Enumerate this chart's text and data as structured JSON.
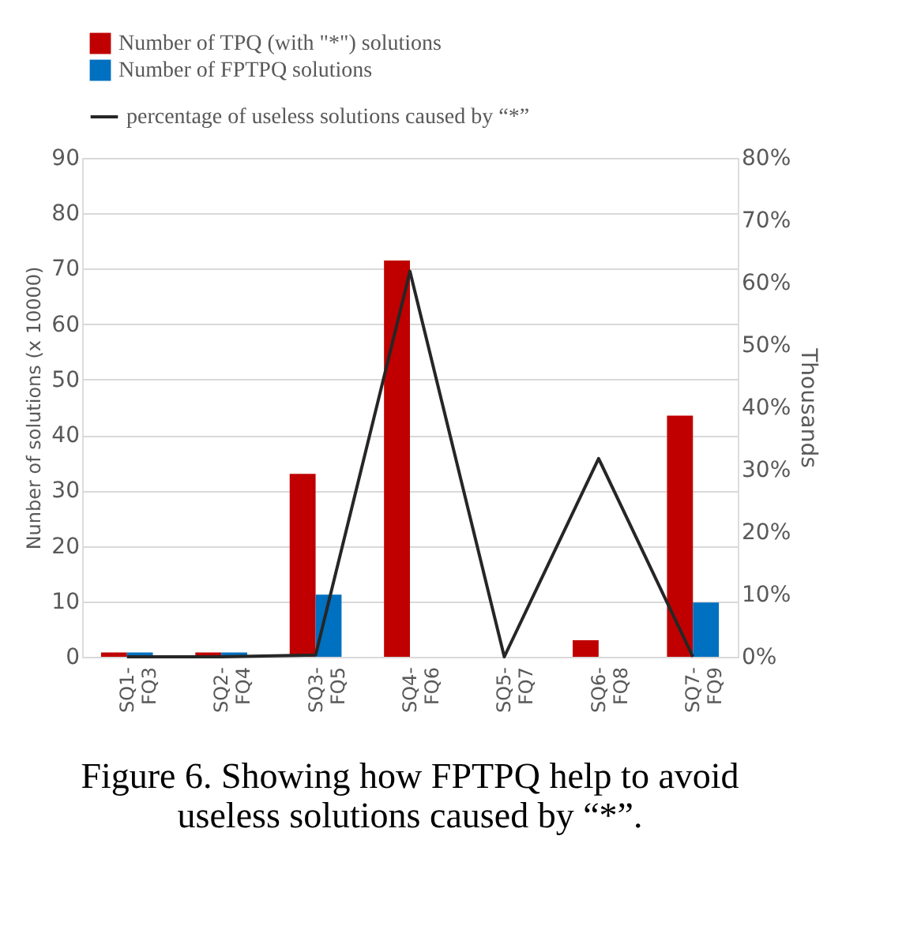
{
  "chart_data": {
    "type": "bar",
    "categories": [
      "SQ1-FQ3",
      "SQ2-FQ4",
      "SQ3-FQ5",
      "SQ4-FQ6",
      "SQ5-FQ7",
      "SQ6-FQ8",
      "SQ7-FQ9"
    ],
    "series": [
      {
        "name": "Number of TPQ (with \"*\") solutions",
        "color": "#c00000",
        "values": [
          0.8,
          0.8,
          33,
          71.5,
          null,
          3,
          43.5
        ]
      },
      {
        "name": "Number of FPTPQ solutions",
        "color": "#0070c0",
        "values": [
          0.8,
          0.8,
          11.2,
          null,
          null,
          null,
          9.8
        ]
      },
      {
        "name": "percentage of useless solutions caused by “*”",
        "color": "#262626",
        "type": "line",
        "axis": "y2",
        "values": [
          0,
          0,
          0.3,
          61.8,
          0,
          31.8,
          0
        ]
      }
    ],
    "ylabel": "Nunber of solutions (x 10000)",
    "y2label": "Thousands",
    "ylim": [
      0,
      90
    ],
    "yticks": [
      0,
      10,
      20,
      30,
      40,
      50,
      60,
      70,
      80,
      90
    ],
    "y2lim": [
      0,
      80
    ],
    "y2ticks": [
      {
        "value": 0,
        "label": "0%"
      },
      {
        "value": 10,
        "label": "10%"
      },
      {
        "value": 20,
        "label": "20%"
      },
      {
        "value": 30,
        "label": "30%"
      },
      {
        "value": 40,
        "label": "40%"
      },
      {
        "value": 50,
        "label": "50%"
      },
      {
        "value": 60,
        "label": "60%"
      },
      {
        "value": 70,
        "label": "70%"
      },
      {
        "value": 80,
        "label": "80%"
      }
    ],
    "grid": "y",
    "legend": "top left",
    "annotations": [
      "Figure 6. Showing how FPTPQ help to avoid useless solutions caused by “*”."
    ]
  }
}
